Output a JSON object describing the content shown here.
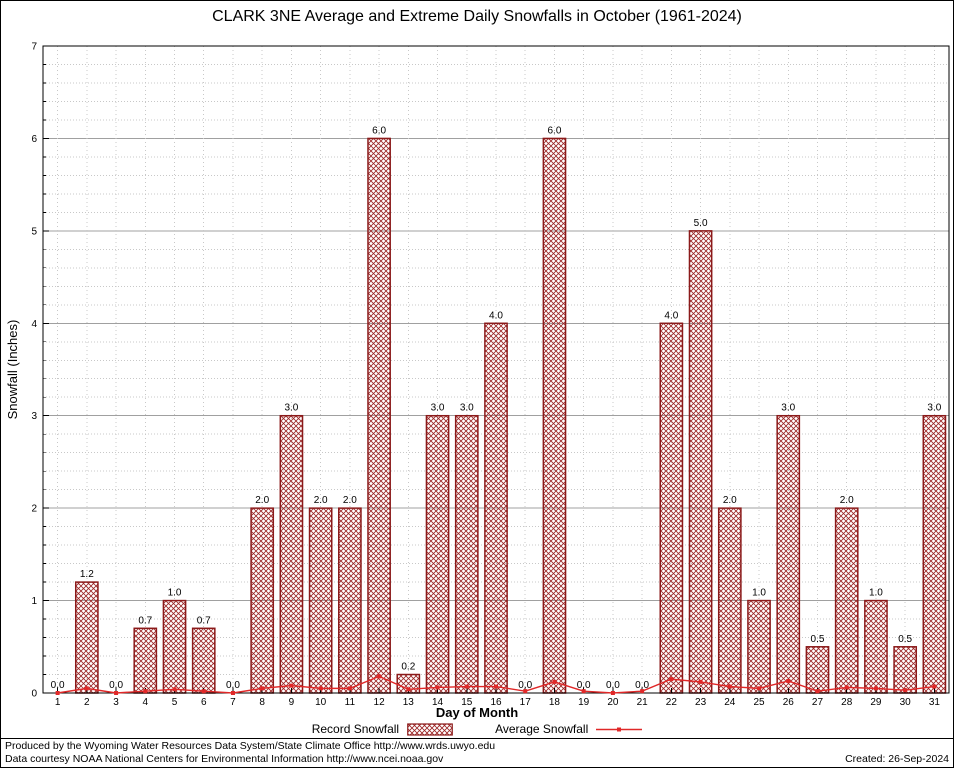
{
  "title": "CLARK 3NE Average and Extreme Daily Snowfalls in October (1961-2024)",
  "chart_data": {
    "type": "bar",
    "title": "CLARK 3NE Average and Extreme Daily Snowfalls in October (1961-2024)",
    "xlabel": "Day of Month",
    "ylabel": "Snowfall (Inches)",
    "ylim": [
      0,
      7
    ],
    "grid": true,
    "legend_position": "bottom",
    "categories": [
      "1",
      "2",
      "3",
      "4",
      "5",
      "6",
      "7",
      "8",
      "9",
      "10",
      "11",
      "12",
      "13",
      "14",
      "15",
      "16",
      "17",
      "18",
      "19",
      "20",
      "21",
      "22",
      "23",
      "24",
      "25",
      "26",
      "27",
      "28",
      "29",
      "30",
      "31"
    ],
    "series": [
      {
        "name": "Record Snowfall",
        "type": "bar",
        "values": [
          0.0,
          1.2,
          0.0,
          0.7,
          1.0,
          0.7,
          0.0,
          2.0,
          3.0,
          2.0,
          2.0,
          6.0,
          0.2,
          3.0,
          3.0,
          4.0,
          0.0,
          6.0,
          0.0,
          0.0,
          0.0,
          4.0,
          5.0,
          2.0,
          1.0,
          3.0,
          0.5,
          2.0,
          1.0,
          0.5,
          3.0
        ]
      },
      {
        "name": "Average Snowfall",
        "type": "line",
        "values": [
          0.0,
          0.05,
          0.0,
          0.02,
          0.04,
          0.02,
          0.0,
          0.05,
          0.08,
          0.05,
          0.05,
          0.18,
          0.04,
          0.06,
          0.07,
          0.07,
          0.02,
          0.12,
          0.02,
          0.0,
          0.02,
          0.15,
          0.12,
          0.07,
          0.05,
          0.13,
          0.02,
          0.06,
          0.05,
          0.03,
          0.07
        ]
      }
    ],
    "bar_value_labels": [
      "0.0",
      "1.2",
      "0.0",
      "0.7",
      "1.0",
      "0.7",
      "0.0",
      "2.0",
      "3.0",
      "2.0",
      "2.0",
      "6.0",
      "0.2",
      "3.0",
      "3.0",
      "4.0",
      "0.0",
      "6.0",
      "0.0",
      "0.0",
      "0.0",
      "4.0",
      "5.0",
      "2.0",
      "1.0",
      "3.0",
      "0.5",
      "2.0",
      "1.0",
      "0.5",
      "3.0"
    ],
    "y_tick_labels": [
      "0",
      "1",
      "2",
      "3",
      "4",
      "5",
      "6",
      "7"
    ]
  },
  "colors": {
    "bar_stroke": "#8b1a1a",
    "bar_fill_hatch": "#9b2424",
    "line": "#e02828",
    "grid_major": "#a0a0a0",
    "grid_minor": "#c8c8c8",
    "axis": "#000000"
  },
  "footer": {
    "line1": "Produced by the Wyoming Water Resources Data System/State Climate Office http://www.wrds.uwyo.edu",
    "line2": "Data courtesy NOAA National Centers for Environmental Information http://www.ncei.noaa.gov",
    "created": "Created: 26-Sep-2024"
  }
}
